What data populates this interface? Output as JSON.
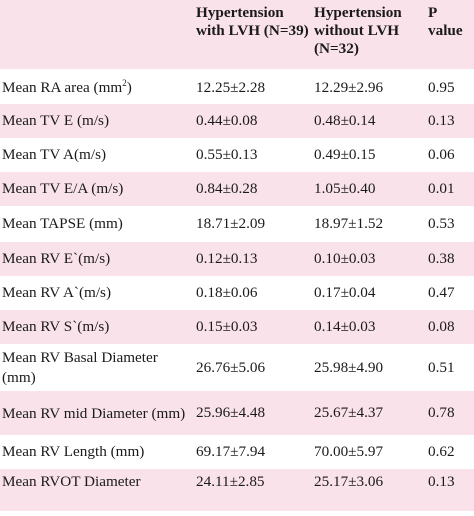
{
  "table": {
    "headers": [
      "",
      "Hypertension with LVH (N=39)",
      "Hypertension without LVH (N=32)",
      "P value"
    ],
    "rows": [
      {
        "label": "Mean RA area (mm",
        "label_sup": "2",
        "label_tail": ")",
        "with_lvh": "12.25±2.28",
        "without_lvh": "12.29±2.96",
        "p": "0.95"
      },
      {
        "label": "Mean TV E (m/s)",
        "with_lvh": "0.44±0.08",
        "without_lvh": "0.48±0.14",
        "p": "0.13"
      },
      {
        "label": "Mean TV A(m/s)",
        "with_lvh": "0.55±0.13",
        "without_lvh": "0.49±0.15",
        "p": "0.06"
      },
      {
        "label": "Mean TV E/A (m/s)",
        "with_lvh": "0.84±0.28",
        "without_lvh": "1.05±0.40",
        "p": "0.01"
      },
      {
        "label": "Mean TAPSE  (mm)",
        "with_lvh": "18.71±2.09",
        "without_lvh": "18.97±1.52",
        "p": "0.53"
      },
      {
        "label": "Mean RV E`(m/s)",
        "with_lvh": "0.12±0.13",
        "without_lvh": "0.10±0.03",
        "p": "0.38"
      },
      {
        "label": "Mean RV A`(m/s)",
        "with_lvh": "0.18±0.06",
        "without_lvh": "0.17±0.04",
        "p": "0.47"
      },
      {
        "label": "Mean RV S`(m/s)",
        "with_lvh": "0.15±0.03",
        "without_lvh": "0.14±0.03",
        "p": "0.08"
      },
      {
        "label": "Mean RV Basal Diameter (mm)",
        "with_lvh": "26.76±5.06",
        "without_lvh": "25.98±4.90",
        "p": "0.51"
      },
      {
        "label": "Mean RV mid Diameter (mm)",
        "with_lvh": "25.96±4.48",
        "without_lvh": "25.67±4.37",
        "p": "0.78"
      },
      {
        "label": "Mean RV Length (mm)",
        "with_lvh": "69.17±7.94",
        "without_lvh": "70.00±5.97",
        "p": "0.62"
      },
      {
        "label": "Mean RVOT Diameter",
        "with_lvh": "24.11±2.85",
        "without_lvh": "25.17±3.06",
        "p": "0.13"
      }
    ]
  },
  "colors": {
    "row_pink": "#f9e2ea",
    "row_white": "#ffffff",
    "text": "#1a1a1a"
  }
}
